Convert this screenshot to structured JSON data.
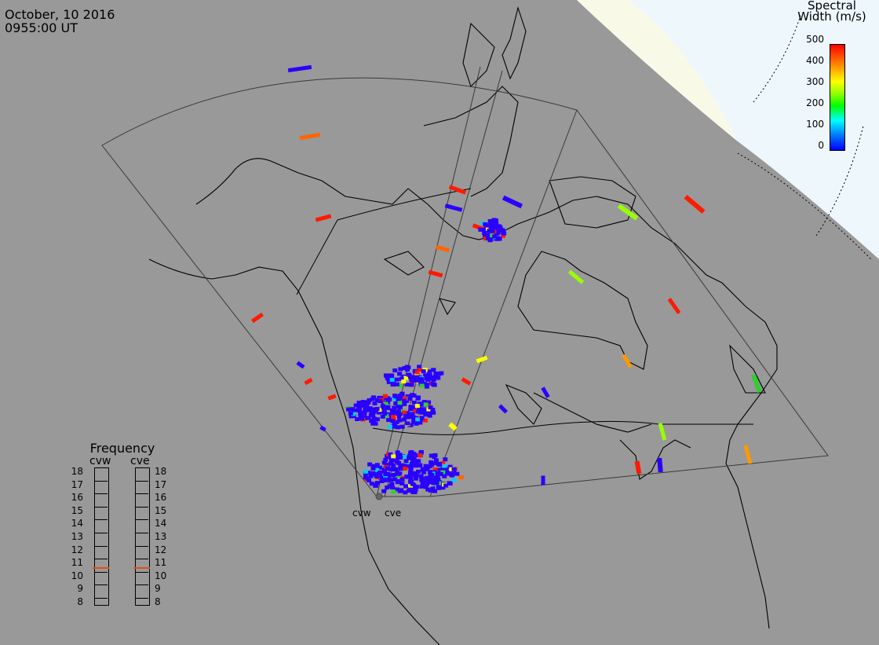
{
  "header": {
    "date": "October, 10 2016",
    "time": "0955:00 UT"
  },
  "colorbar": {
    "title_line1": "Spectral",
    "title_line2": "Width (m/s)",
    "ticks": [
      "500",
      "400",
      "300",
      "200",
      "100",
      "0"
    ],
    "range": [
      0,
      500
    ],
    "colors": [
      "#0000ff",
      "#00ffff",
      "#00ff00",
      "#ffff00",
      "#ff8000",
      "#ff0000"
    ]
  },
  "frequency_panel": {
    "title": "Frequency",
    "radars": [
      {
        "id": "cvw",
        "label": "cvw",
        "frequency_mhz": 10.6
      },
      {
        "id": "cve",
        "label": "cve",
        "frequency_mhz": 10.6
      }
    ],
    "scale": [
      "18",
      "17",
      "16",
      "15",
      "14",
      "13",
      "12",
      "11",
      "10",
      "9",
      "8"
    ],
    "range": [
      8,
      18
    ],
    "marker_color": "#e05010"
  },
  "sites": [
    {
      "label": "cvw"
    },
    {
      "label": "cve"
    }
  ],
  "colors": {
    "land_gray": "#999999",
    "night_polar": "#eef7fc",
    "day_terminator": "#f9f9e8"
  }
}
